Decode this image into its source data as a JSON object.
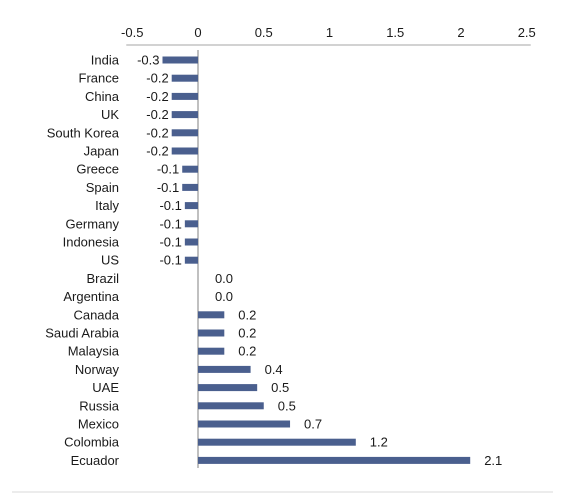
{
  "chart_data": {
    "type": "bar",
    "orientation": "horizontal",
    "title": "",
    "xlabel": "",
    "ylabel": "",
    "xlim": [
      -0.5,
      2.5
    ],
    "x_ticks": [
      "-0.5",
      "0",
      "0.5",
      "1",
      "1.5",
      "2",
      "2.5"
    ],
    "x_tick_values": [
      -0.5,
      0,
      0.5,
      1,
      1.5,
      2,
      2.5
    ],
    "axis_position": "top",
    "grid": false,
    "legend": "none",
    "bar_color": "#4a5f8e",
    "categories": [
      "India",
      "France",
      "China",
      "UK",
      "South Korea",
      "Japan",
      "Greece",
      "Spain",
      "Italy",
      "Germany",
      "Indonesia",
      "US",
      "Brazil",
      "Argentina",
      "Canada",
      "Saudi Arabia",
      "Malaysia",
      "Norway",
      "UAE",
      "Russia",
      "Mexico",
      "Colombia",
      "Ecuador"
    ],
    "values": [
      -0.27,
      -0.2,
      -0.2,
      -0.2,
      -0.2,
      -0.2,
      -0.12,
      -0.12,
      -0.1,
      -0.1,
      -0.1,
      -0.1,
      0.0,
      0.0,
      0.2,
      0.2,
      0.2,
      0.4,
      0.45,
      0.5,
      0.7,
      1.2,
      2.07
    ],
    "data_labels": [
      "-0.3",
      "-0.2",
      "-0.2",
      "-0.2",
      "-0.2",
      "-0.2",
      "-0.1",
      "-0.1",
      "-0.1",
      "-0.1",
      "-0.1",
      "-0.1",
      "0.0",
      "0.0",
      "0.2",
      "0.2",
      "0.2",
      "0.4",
      "0.5",
      "0.5",
      "0.7",
      "1.2",
      "2.1"
    ]
  }
}
